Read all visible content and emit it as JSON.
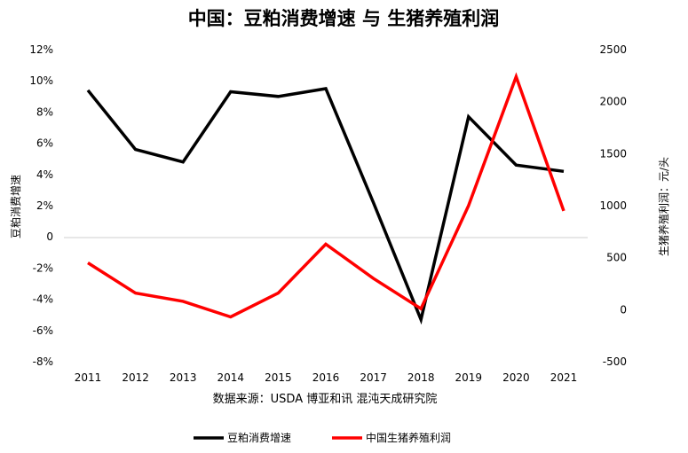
{
  "chart_data": {
    "type": "line",
    "title": "中国：豆粕消费增速 与 生猪养殖利润",
    "source_note": "数据来源：USDA 博亚和讯 混沌天成研究院",
    "categories": [
      "2011",
      "2012",
      "2013",
      "2014",
      "2015",
      "2016",
      "2017",
      "2018",
      "2019",
      "2020",
      "2021"
    ],
    "y_left": {
      "label": "豆粕消费增速",
      "ylim": [
        -8,
        12
      ],
      "ticks": [
        -8,
        -6,
        -4,
        -2,
        0,
        2,
        4,
        6,
        8,
        10,
        12
      ],
      "tick_labels": [
        "-8%",
        "-6%",
        "-4%",
        "-2%",
        "0",
        "2%",
        "4%",
        "6%",
        "8%",
        "10%",
        "12%"
      ]
    },
    "y_right": {
      "label": "生猪养殖利润：元/头",
      "ylim": [
        -500,
        2500
      ],
      "ticks": [
        -500,
        0,
        500,
        1000,
        1500,
        2000,
        2500
      ],
      "tick_labels": [
        "-500",
        "0",
        "500",
        "1000",
        "1500",
        "2000",
        "2500"
      ]
    },
    "series": [
      {
        "name": "豆粕消费增速",
        "axis": "left",
        "color": "#000000",
        "values": [
          9.4,
          5.6,
          4.8,
          9.3,
          9.0,
          9.5,
          2.2,
          -5.3,
          7.7,
          4.6,
          4.2
        ]
      },
      {
        "name": "中国生猪养殖利润",
        "axis": "right",
        "color": "#ff0000",
        "values": [
          450,
          160,
          80,
          -70,
          160,
          630,
          300,
          10,
          1000,
          2240,
          950
        ]
      }
    ],
    "zero_line": true,
    "grid": false,
    "legend_position": "bottom"
  }
}
